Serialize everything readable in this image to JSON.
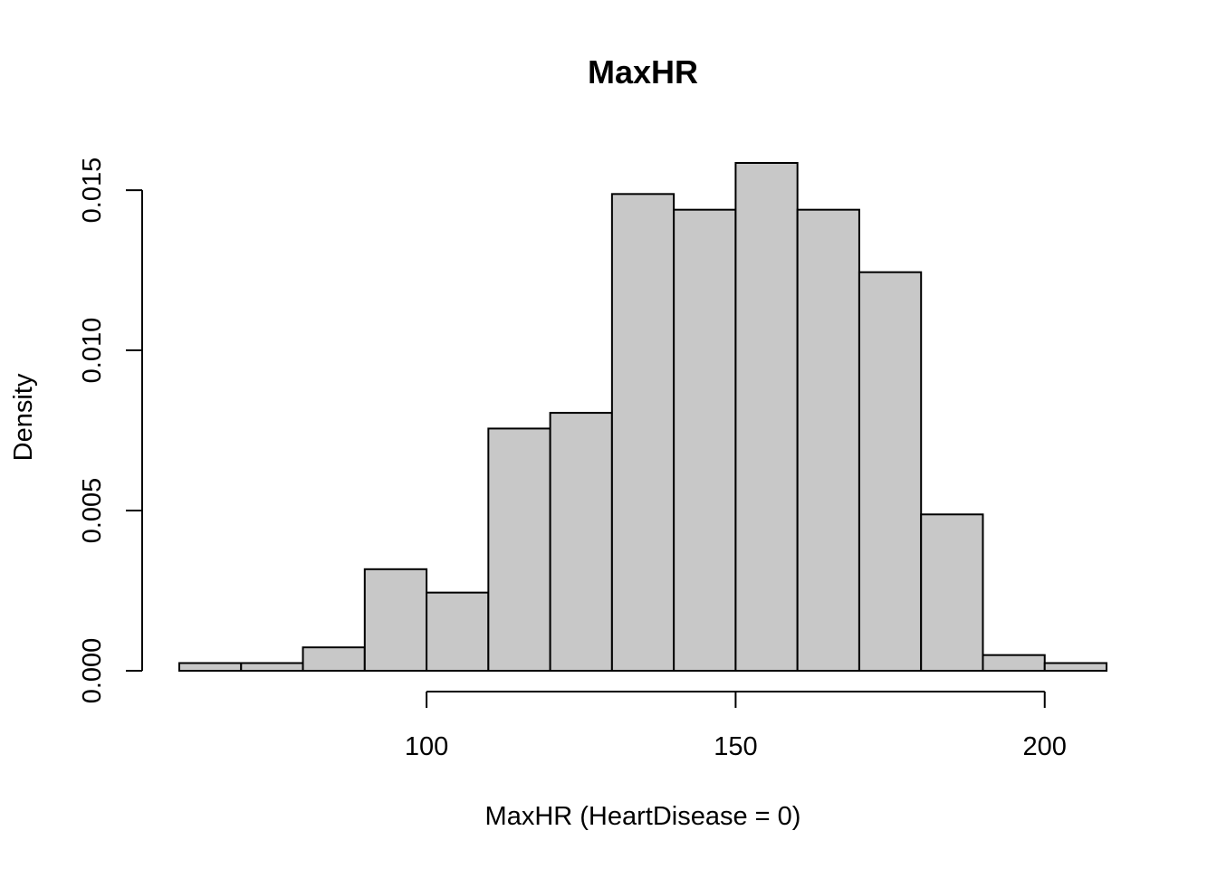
{
  "chart_data": {
    "type": "bar",
    "title": "MaxHR",
    "xlabel": "MaxHR (HeartDisease = 0)",
    "ylabel": "Density",
    "bar_color": "#c8c8c8",
    "border_color": "#000000",
    "bins": [
      {
        "start": 60,
        "end": 70,
        "density": 0.00024
      },
      {
        "start": 70,
        "end": 80,
        "density": 0.00024
      },
      {
        "start": 80,
        "end": 90,
        "density": 0.00073
      },
      {
        "start": 90,
        "end": 100,
        "density": 0.00317
      },
      {
        "start": 100,
        "end": 110,
        "density": 0.00244
      },
      {
        "start": 110,
        "end": 120,
        "density": 0.00756
      },
      {
        "start": 120,
        "end": 130,
        "density": 0.00805
      },
      {
        "start": 130,
        "end": 140,
        "density": 0.01488
      },
      {
        "start": 140,
        "end": 150,
        "density": 0.01439
      },
      {
        "start": 150,
        "end": 160,
        "density": 0.01585
      },
      {
        "start": 160,
        "end": 170,
        "density": 0.01439
      },
      {
        "start": 170,
        "end": 180,
        "density": 0.01244
      },
      {
        "start": 180,
        "end": 190,
        "density": 0.00488
      },
      {
        "start": 190,
        "end": 200,
        "density": 0.00049
      },
      {
        "start": 200,
        "end": 210,
        "density": 0.00024
      }
    ],
    "x_ticks": [
      100,
      150,
      200
    ],
    "x_tick_labels": [
      "100",
      "150",
      "200"
    ],
    "y_ticks": [
      0,
      0.005,
      0.01,
      0.015
    ],
    "y_tick_labels": [
      "0.000",
      "0.005",
      "0.010",
      "0.015"
    ],
    "xlim": [
      60,
      210
    ],
    "ylim": [
      0,
      0.01585
    ],
    "grid": false,
    "legend": "none"
  }
}
